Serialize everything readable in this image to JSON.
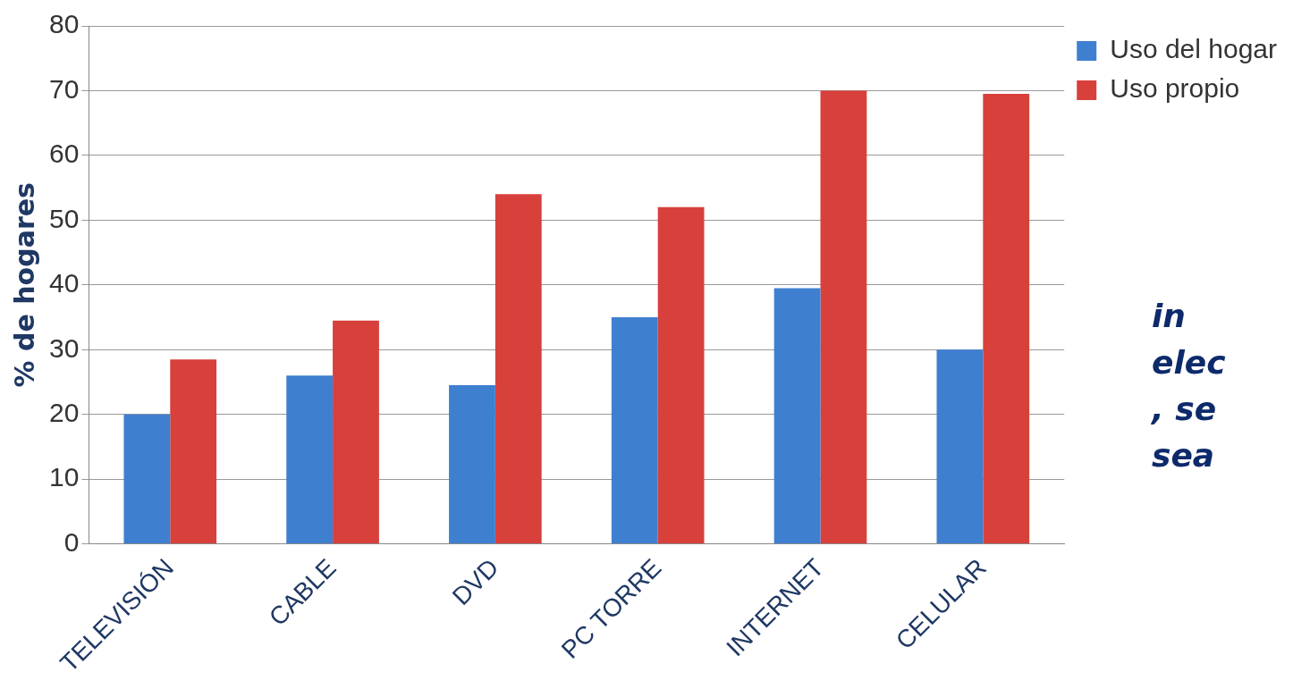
{
  "chart_data": {
    "type": "bar",
    "ylabel": "% de hogares",
    "categories": [
      "TELEVISIÓN",
      "CABLE",
      "DVD",
      "PC TORRE",
      "INTERNET",
      "CELULAR"
    ],
    "series": [
      {
        "name": "Uso del hogar",
        "color": "#3f7fd0",
        "values": [
          20,
          26,
          24.5,
          35,
          39.5,
          30
        ]
      },
      {
        "name": "Uso propio",
        "color": "#d8403c",
        "values": [
          28.5,
          34.5,
          54,
          52,
          70,
          69.5
        ]
      }
    ],
    "ylim": [
      0,
      80
    ],
    "yticks": [
      0,
      10,
      20,
      30,
      40,
      50,
      60,
      70,
      80
    ],
    "grid": "y",
    "legend": "top right",
    "annotations": [
      "in",
      "elec",
      ", se",
      "sea"
    ]
  }
}
